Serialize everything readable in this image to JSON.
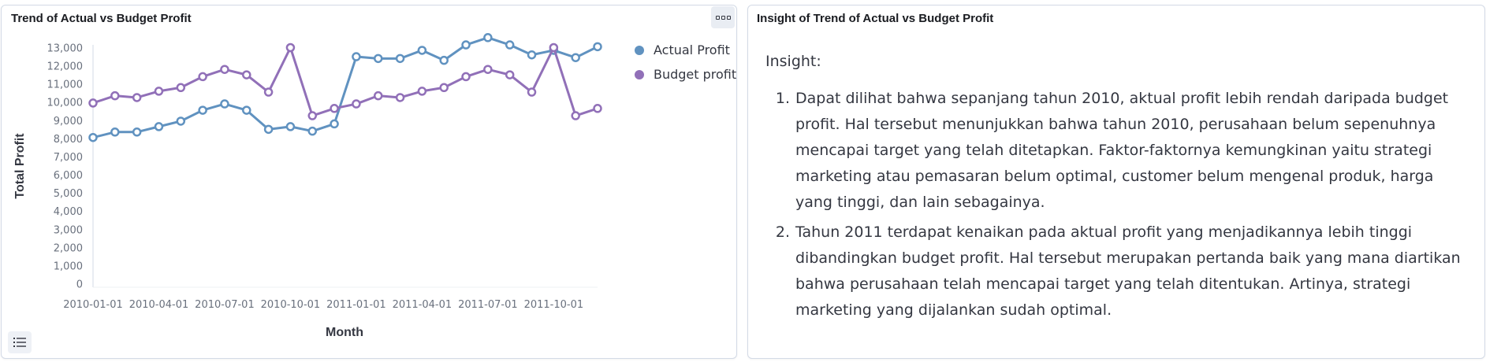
{
  "left_panel": {
    "title": "Trend of Actual vs Budget Profit",
    "options_icon": "panel-options-icon",
    "legend_toggle_icon": "list-icon"
  },
  "right_panel": {
    "title": "Insight of Trend of Actual vs Budget Profit",
    "heading": "Insight:",
    "items": [
      {
        "num": "1.",
        "text": "Dapat dilihat bahwa sepanjang tahun 2010, aktual profit lebih rendah daripada budget profit. Hal tersebut menunjukkan bahwa tahun 2010, perusahaan belum sepenuhnya mencapai target yang telah ditetapkan. Faktor-faktornya kemungkinan yaitu strategi marketing atau pemasaran belum optimal, customer belum mengenal produk, harga yang tinggi, dan lain sebagainya."
      },
      {
        "num": "2.",
        "text": "Tahun 2011 terdapat kenaikan pada aktual profit yang menjadikannya lebih tinggi dibandingkan budget profit. Hal tersebut merupakan pertanda baik yang mana diartikan bahwa perusahaan telah mencapai target yang telah ditentukan. Artinya, strategi marketing yang dijalankan sudah optimal."
      }
    ]
  },
  "chart_data": {
    "type": "line",
    "title": "Trend of Actual vs Budget Profit",
    "xlabel": "Month",
    "ylabel": "Total Profit",
    "x": [
      "2010-01-01",
      "2010-02-01",
      "2010-03-01",
      "2010-04-01",
      "2010-05-01",
      "2010-06-01",
      "2010-07-01",
      "2010-08-01",
      "2010-09-01",
      "2010-10-01",
      "2010-11-01",
      "2010-12-01",
      "2011-01-01",
      "2011-02-01",
      "2011-03-01",
      "2011-04-01",
      "2011-05-01",
      "2011-06-01",
      "2011-07-01",
      "2011-08-01",
      "2011-09-01",
      "2011-10-01",
      "2011-11-01",
      "2011-12-01"
    ],
    "x_tick_labels": [
      "2010-01-01",
      "2010-04-01",
      "2010-07-01",
      "2010-10-01",
      "2011-01-01",
      "2011-04-01",
      "2011-07-01",
      "2011-10-01"
    ],
    "y_ticks": [
      0,
      1000,
      2000,
      3000,
      4000,
      5000,
      6000,
      7000,
      8000,
      9000,
      10000,
      11000,
      12000,
      13000
    ],
    "y_tick_labels": [
      "0",
      "1,000",
      "2,000",
      "3,000",
      "4,000",
      "5,000",
      "6,000",
      "7,000",
      "8,000",
      "9,000",
      "10,000",
      "11,000",
      "12,000",
      "13,000"
    ],
    "ylim": [
      0,
      13000
    ],
    "grid": false,
    "legend_position": "top-right",
    "series": [
      {
        "name": "Actual Profit",
        "color": "#6092c0",
        "values": [
          8050,
          8350,
          8350,
          8650,
          8950,
          9550,
          9900,
          9550,
          8500,
          8650,
          8400,
          8800,
          12500,
          12400,
          12400,
          12850,
          12300,
          13150,
          13550,
          13150,
          12600,
          12850,
          12450,
          13050
        ]
      },
      {
        "name": "Budget profit",
        "color": "#9170b8",
        "values": [
          9950,
          10350,
          10250,
          10600,
          10800,
          11400,
          11800,
          11500,
          10550,
          13000,
          9250,
          9650,
          9900,
          10350,
          10250,
          10600,
          10800,
          11400,
          11800,
          11500,
          10550,
          13000,
          9250,
          9650
        ]
      }
    ]
  }
}
